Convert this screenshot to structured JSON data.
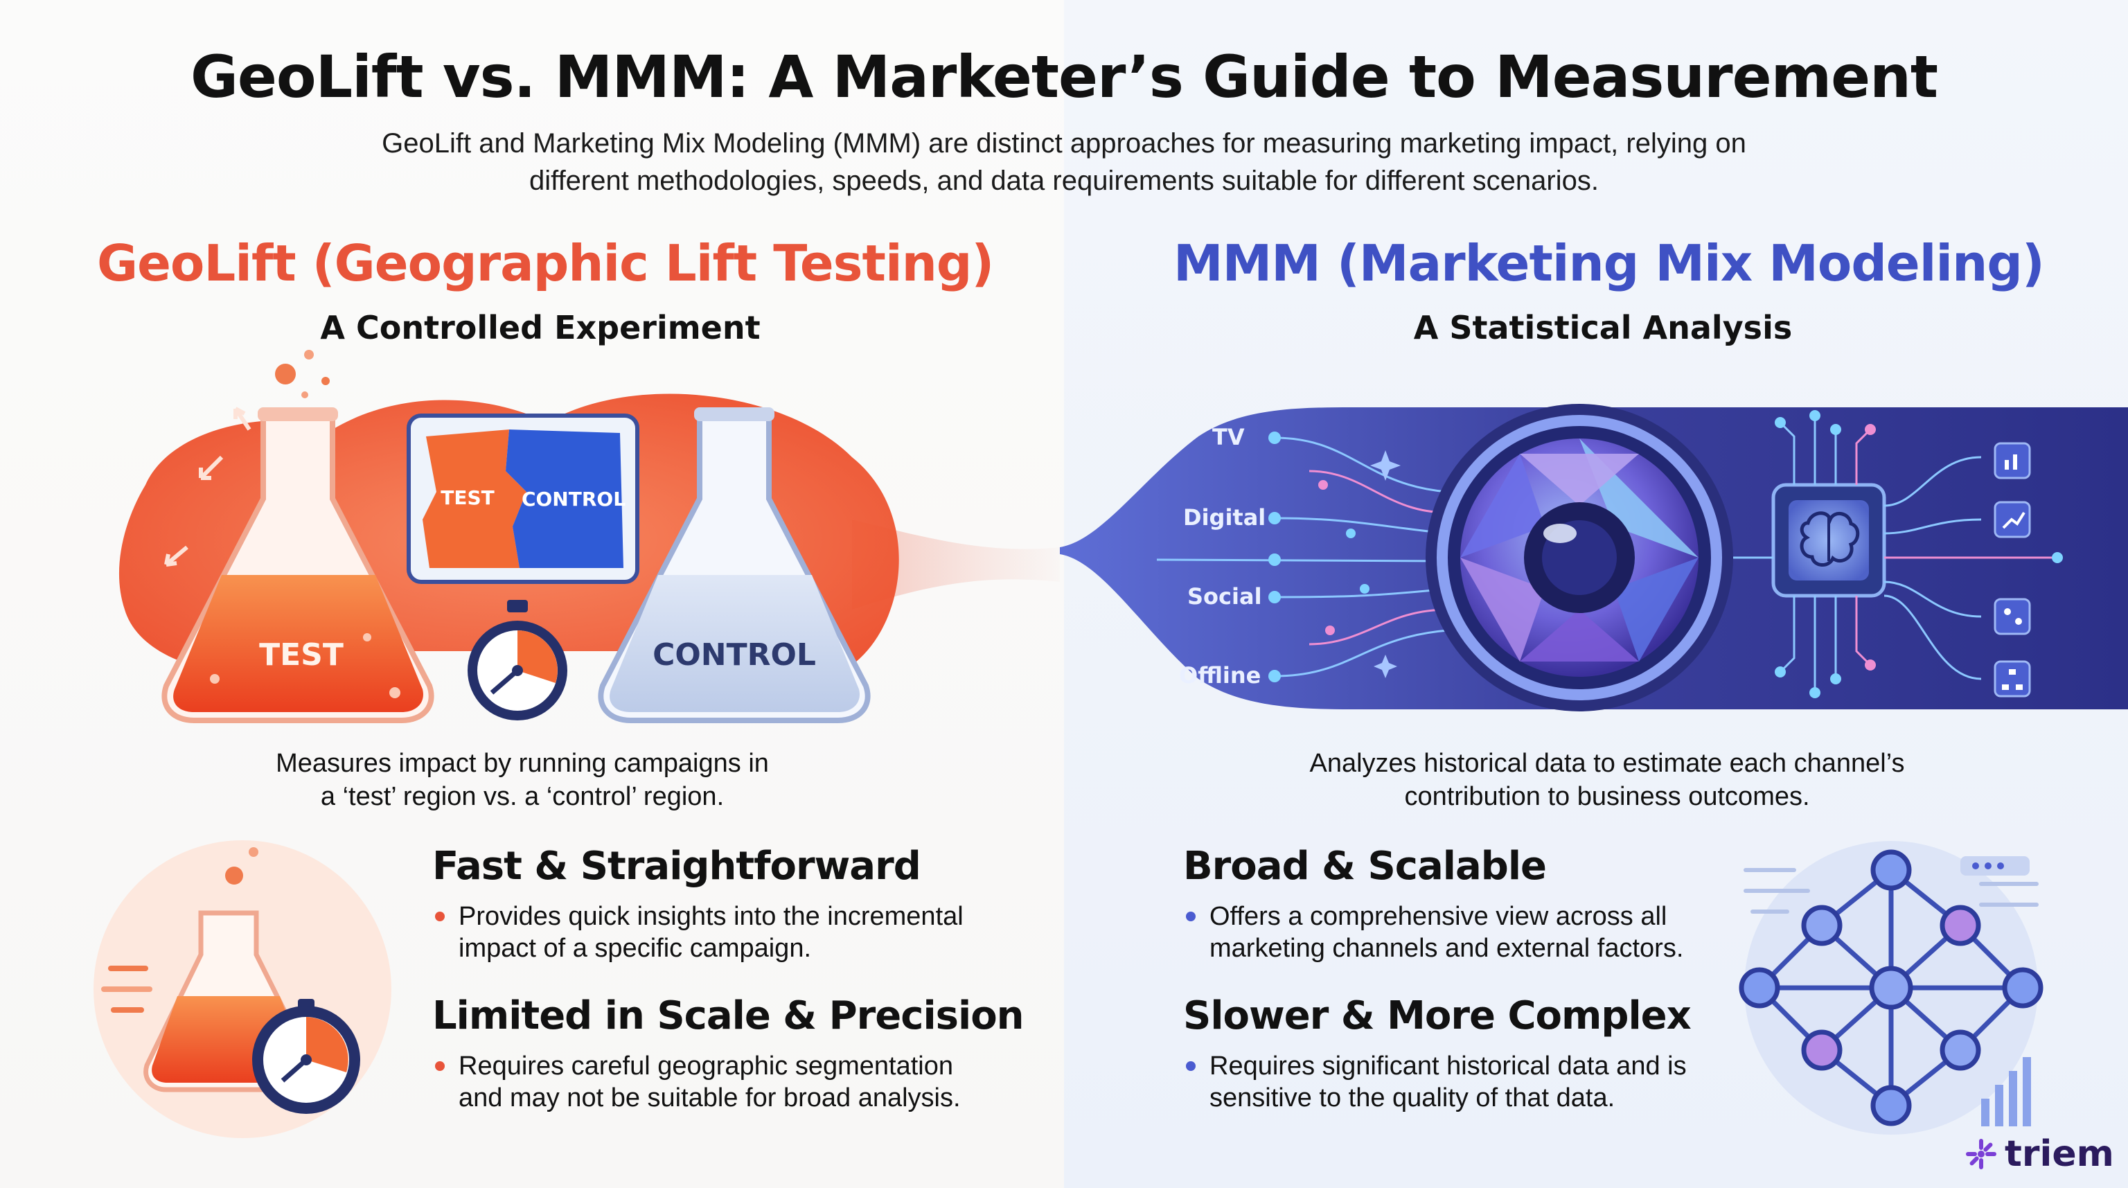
{
  "header": {
    "title": "GeoLift vs. MMM: A Marketer’s Guide to Measurement",
    "subtitle_line1": "GeoLift and Marketing Mix Modeling (MMM) are distinct approaches for measuring marketing impact, relying on",
    "subtitle_line2": "different methodologies, speeds, and data requirements suitable for different scenarios."
  },
  "geolift": {
    "title": "GeoLift (Geographic Lift Testing)",
    "subtitle": "A Controlled Experiment",
    "illustration": {
      "flask_test_label": "TEST",
      "flask_control_label": "CONTROL",
      "map_test_label": "TEST",
      "map_control_label": "CONTROL"
    },
    "description_line1": "Measures impact by running campaigns in",
    "description_line2": "a ‘test’ region vs. a ‘control’ region.",
    "pro_title": "Fast & Straightforward",
    "pro_line1": "Provides quick insights into the incremental",
    "pro_line2": "impact of a specific campaign.",
    "con_title": "Limited in Scale & Precision",
    "con_line1": "Requires careful geographic segmentation",
    "con_line2": "and may not be suitable for broad analysis.",
    "colors": {
      "accent": "#e8543a"
    }
  },
  "mmm": {
    "title": "MMM (Marketing Mix Modeling)",
    "subtitle": "A Statistical Analysis",
    "channels": [
      "TV",
      "Digital",
      "Social",
      "Offline"
    ],
    "description_line1": "Analyzes historical data to estimate each channel’s",
    "description_line2": "contribution to business outcomes.",
    "pro_title": "Broad & Scalable",
    "pro_line1": "Offers a comprehensive view across all",
    "pro_line2": "marketing channels and external factors.",
    "con_title": "Slower & More Complex",
    "con_line1": "Requires significant historical data and is",
    "con_line2": "sensitive to the quality of that data.",
    "colors": {
      "accent": "#3f51c4"
    }
  },
  "brand": {
    "logo_text": "triem",
    "logo_icon": "sparkle-icon"
  }
}
